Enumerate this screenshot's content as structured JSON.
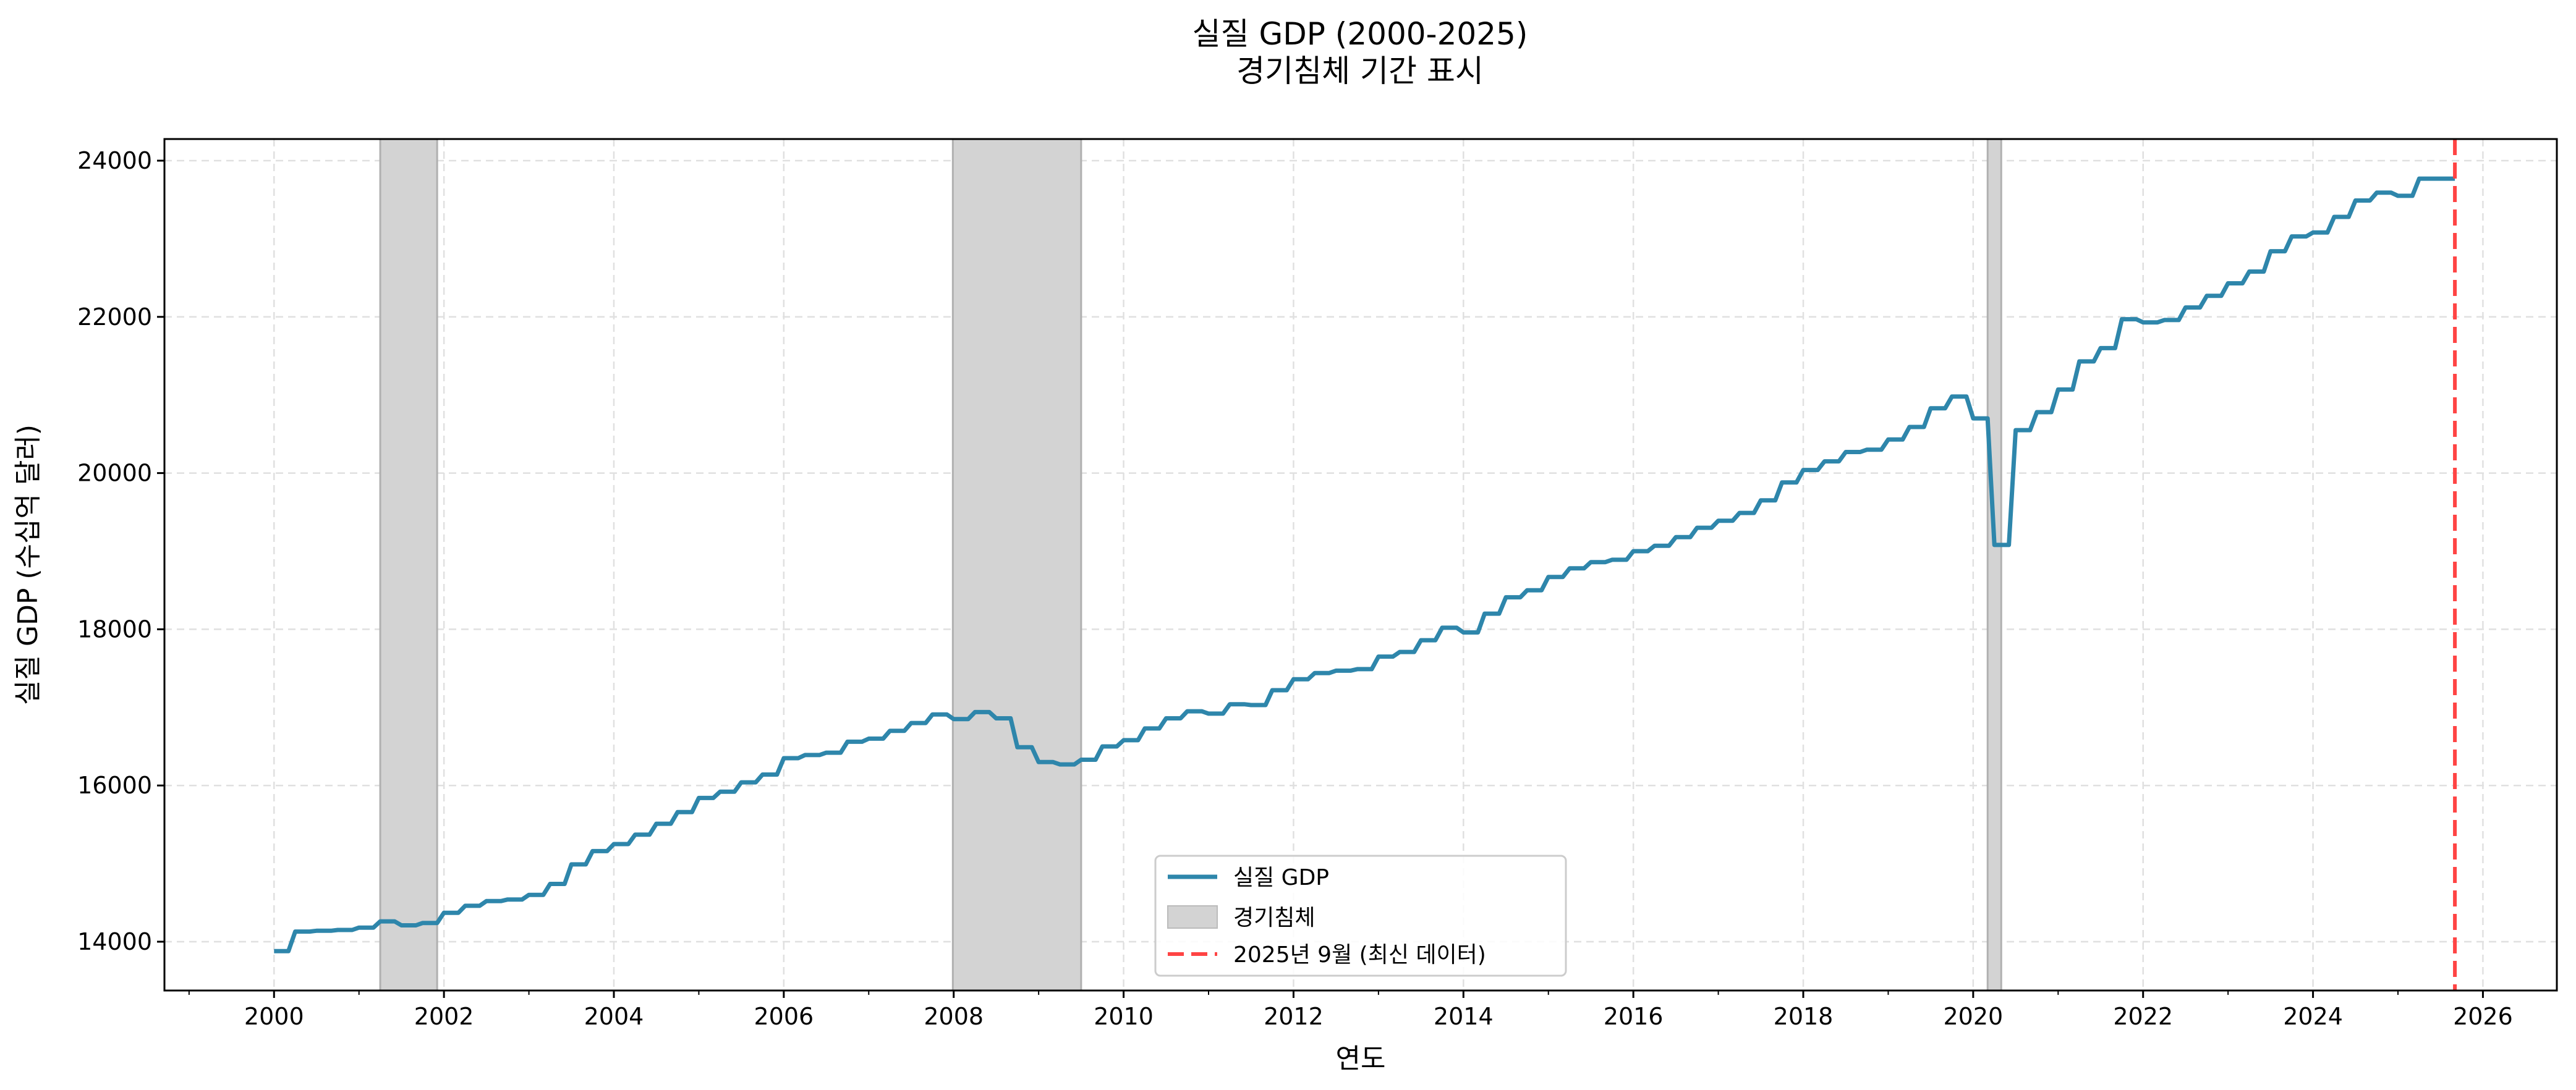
{
  "chart_data": {
    "type": "line",
    "title": "실질 GDP (2000-2025)",
    "subtitle": "경기침체 기간 표시",
    "xlabel": "연도",
    "ylabel": "실질 GDP (수십억 달러)",
    "xlim": [
      1998.71,
      2026.87
    ],
    "ylim": [
      13375,
      24277
    ],
    "xticks": [
      "2000",
      "2002",
      "2004",
      "2006",
      "2008",
      "2010",
      "2012",
      "2014",
      "2016",
      "2018",
      "2020",
      "2022",
      "2024",
      "2026"
    ],
    "yticks": [
      "14000",
      "16000",
      "18000",
      "20000",
      "22000",
      "24000"
    ],
    "grid": true,
    "legend_position": "bottom-center",
    "legend": [
      "실질 GDP",
      "경기침체",
      "2025년 9월 (최신 데이터)"
    ],
    "series": [
      {
        "name": "실질 GDP",
        "color": "#2e86ab",
        "start_year": 2000,
        "frequency": "quarterly",
        "values": [
          13880,
          14130,
          14140,
          14150,
          14180,
          14260,
          14210,
          14240,
          14370,
          14460,
          14520,
          14540,
          14600,
          14740,
          14990,
          15160,
          15250,
          15370,
          15510,
          15660,
          15840,
          15920,
          16040,
          16140,
          16350,
          16390,
          16420,
          16560,
          16600,
          16700,
          16800,
          16910,
          16850,
          16940,
          16860,
          16490,
          16300,
          16270,
          16330,
          16500,
          16580,
          16730,
          16860,
          16950,
          16920,
          17040,
          17030,
          17220,
          17360,
          17440,
          17470,
          17490,
          17650,
          17710,
          17860,
          18020,
          17960,
          18200,
          18410,
          18500,
          18670,
          18780,
          18860,
          18890,
          19000,
          19070,
          19180,
          19300,
          19390,
          19490,
          19650,
          19880,
          20040,
          20150,
          20270,
          20300,
          20430,
          20590,
          20830,
          20980,
          20700,
          19080,
          20550,
          20780,
          21070,
          21430,
          21600,
          21970,
          21930,
          21960,
          22120,
          22270,
          22430,
          22580,
          22840,
          23030,
          23080,
          23280,
          23490,
          23590,
          23550,
          23770,
          23770
        ]
      }
    ],
    "recessions": [
      [
        2001.25,
        2001.92
      ],
      [
        2007.99,
        2009.5
      ],
      [
        2020.17,
        2020.33
      ]
    ],
    "recession_color": "#d3d3d3",
    "latest_marker": {
      "x": 2025.67,
      "color": "#ff4444",
      "label": "2025년 9월 (최신 데이터)"
    }
  }
}
